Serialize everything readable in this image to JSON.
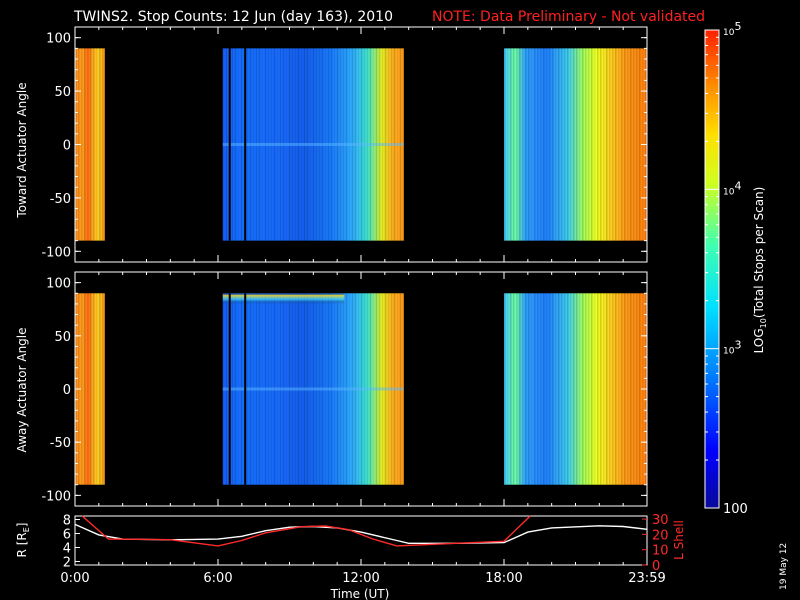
{
  "title": {
    "main": "TWINS2. Stop Counts: 12 Jun (day 163), 2010",
    "note": "NOTE: Data Preliminary - Not validated"
  },
  "date_stamp": "19 May 12",
  "colors": {
    "background": "#000000",
    "axes": "#ffffff",
    "note_red": "#ff2020",
    "l_shell_line": "#ff2a2a",
    "r_line": "#ffffff"
  },
  "chart_data": [
    {
      "type": "heatmap",
      "ylabel": "Toward Actuator Angle",
      "ylim": [
        -110,
        110
      ],
      "yticks": [
        "100",
        "50",
        "0",
        "-50",
        "-100"
      ],
      "ytick_values": [
        100,
        50,
        0,
        -50,
        -100
      ],
      "x_range_hours": [
        0,
        24
      ],
      "data_angle_range": [
        -90,
        90
      ],
      "segments": [
        {
          "x": [
            0.0,
            1.25
          ],
          "level": "high-orange"
        },
        {
          "x": [
            6.2,
            13.8
          ],
          "level": "low-blue"
        },
        {
          "x": [
            18.0,
            24.0
          ],
          "level": "mid-cyan-yellow"
        }
      ],
      "colorscale": "log counts, 100 to 1e5"
    },
    {
      "type": "heatmap",
      "ylabel": "Away Actuator Angle",
      "ylim": [
        -110,
        110
      ],
      "yticks": [
        "100",
        "50",
        "0",
        "-50",
        "-100"
      ],
      "ytick_values": [
        100,
        50,
        0,
        -50,
        -100
      ],
      "x_range_hours": [
        0,
        24
      ],
      "data_angle_range": [
        -90,
        90
      ],
      "segments": [
        {
          "x": [
            0.0,
            1.25
          ],
          "level": "high-orange"
        },
        {
          "x": [
            6.2,
            13.8
          ],
          "level": "low-blue"
        },
        {
          "x": [
            18.0,
            24.0
          ],
          "level": "mid-cyan-yellow"
        }
      ],
      "colorscale": "log counts, 100 to 1e5"
    },
    {
      "type": "line",
      "xlabel": "Time (UT)",
      "xticks": [
        "0:00",
        "6:00",
        "12:00",
        "18:00",
        "23:59"
      ],
      "xtick_values": [
        0,
        6,
        12,
        18,
        24
      ],
      "ylabel_left": "R [R",
      "ylabel_left_sub": "E",
      "ylabel_left_end": "]",
      "ylabel_right": "L Shell",
      "yticks_left": [
        "8",
        "6",
        "4",
        "2"
      ],
      "ytick_values_left": [
        8,
        6,
        4,
        2
      ],
      "ylim_left": [
        1.5,
        8.5
      ],
      "yticks_right": [
        "30",
        "20",
        "10",
        "0"
      ],
      "ytick_values_right": [
        30,
        20,
        10,
        0
      ],
      "ylim_right": [
        0,
        32
      ],
      "series": [
        {
          "name": "",
          "axis": "left",
          "color": "#ffffff",
          "x": [
            0,
            1.0,
            2.0,
            4.0,
            6.0,
            7.0,
            8.0,
            9.0,
            10.0,
            11.0,
            12.0,
            13.5,
            14.0,
            16.0,
            18.0,
            19.0,
            20.0,
            22.0,
            23.0,
            24.0
          ],
          "y": [
            7.3,
            5.8,
            5.2,
            5.1,
            5.2,
            5.6,
            6.4,
            6.9,
            7.0,
            6.8,
            6.2,
            5.0,
            4.6,
            4.6,
            4.7,
            6.2,
            6.8,
            7.1,
            7.0,
            6.6
          ]
        },
        {
          "name": "",
          "axis": "right",
          "color": "#ff2a2a",
          "x": [
            0.3,
            1.4,
            4.0,
            6.0,
            7.0,
            8.0,
            9.5,
            10.5,
            11.5,
            12.5,
            13.5,
            15.0,
            16.5,
            18.0,
            19.1
          ],
          "y": [
            32,
            17,
            16.5,
            12.5,
            16,
            21,
            25,
            25.5,
            23,
            17,
            12.5,
            13.5,
            14.5,
            15.5,
            32
          ]
        }
      ]
    }
  ],
  "colorbar": {
    "label_prefix": "LOG",
    "label_sub": "10",
    "label_suffix": "(Total Stops per Scan)",
    "ticks": [
      {
        "base": "10",
        "exp": "5",
        "value": 100000
      },
      {
        "base": "10",
        "exp": "4",
        "value": 10000
      },
      {
        "base": "10",
        "exp": "3",
        "value": 1000
      },
      {
        "base": "100",
        "exp": "",
        "value": 100
      }
    ]
  }
}
